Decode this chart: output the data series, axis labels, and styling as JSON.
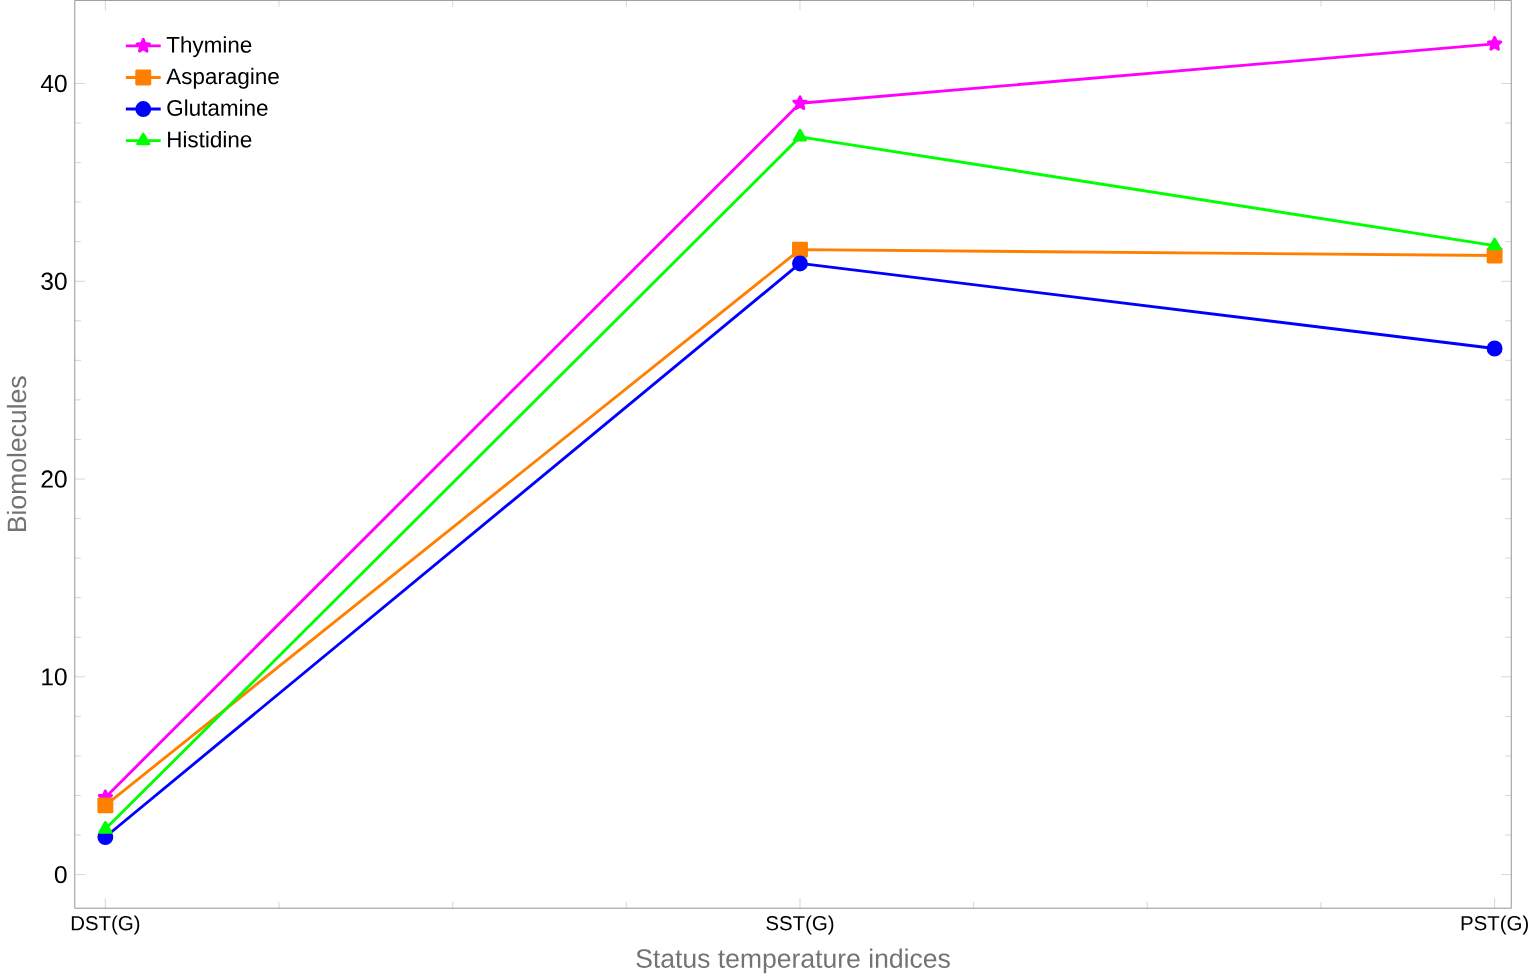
{
  "chart_data": {
    "type": "line",
    "xlabel": "Status temperature indices",
    "ylabel": "Biomolecules",
    "categories": [
      "DST(G)",
      "SST(G)",
      "PST(G)"
    ],
    "series": [
      {
        "name": "Thymine",
        "color": "#ff00ff",
        "marker": "star",
        "values": [
          3.9,
          39.0,
          42.0
        ]
      },
      {
        "name": "Asparagine",
        "color": "#ff8000",
        "marker": "square",
        "values": [
          3.5,
          31.6,
          31.3
        ]
      },
      {
        "name": "Glutamine",
        "color": "#0000ff",
        "marker": "circle",
        "values": [
          1.9,
          30.9,
          26.6
        ]
      },
      {
        "name": "Histidine",
        "color": "#00ff00",
        "marker": "triangle",
        "values": [
          2.3,
          37.3,
          31.8
        ]
      }
    ],
    "ylim": [
      -1.7,
      44.2
    ],
    "yticks": [
      0,
      10,
      20,
      30,
      40
    ],
    "grid": false,
    "legend": "top left",
    "line_style": "solid"
  }
}
